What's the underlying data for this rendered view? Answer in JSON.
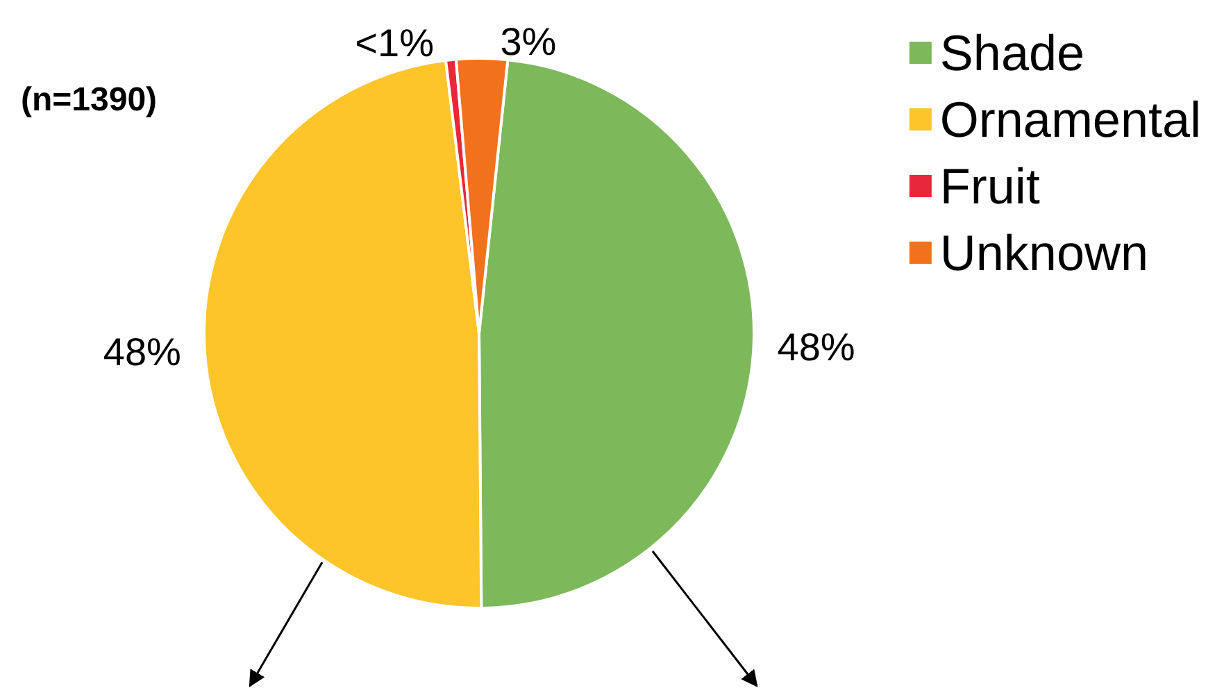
{
  "chart_data": {
    "type": "pie",
    "title": "(n=1390)",
    "categories": [
      "Shade",
      "Ornamental",
      "Fruit",
      "Unknown"
    ],
    "values": [
      48.2,
      48.2,
      0.6,
      3.0
    ],
    "colors": [
      "#7db95a",
      "#fdc52a",
      "#e8283a",
      "#f2711c"
    ],
    "value_labels": [
      "48%",
      "48%",
      "<1%",
      "3%"
    ],
    "legend": "top right"
  }
}
